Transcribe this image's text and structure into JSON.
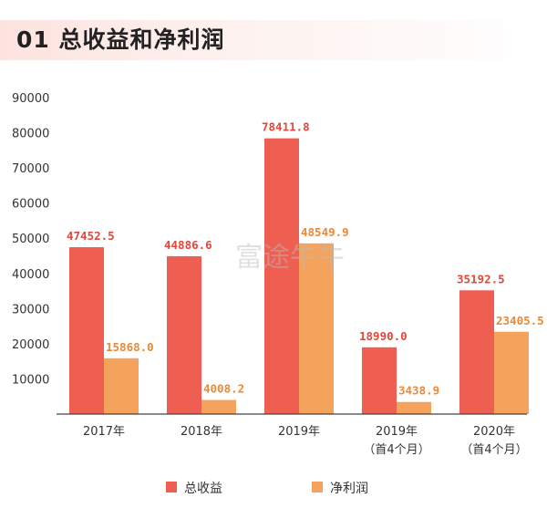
{
  "header": {
    "title": "01 总收益和净利润"
  },
  "watermark": "富途牛牛",
  "colors": {
    "revenue": "#ee5f52",
    "profit": "#f4a25c",
    "revenue_label": "#e0483c",
    "profit_label": "#e88a3a"
  },
  "chart_data": {
    "type": "bar",
    "title": "01 总收益和净利润",
    "categories": [
      {
        "line1": "2017年",
        "line2": ""
      },
      {
        "line1": "2018年",
        "line2": ""
      },
      {
        "line1": "2019年",
        "line2": ""
      },
      {
        "line1": "2019年",
        "line2": "（首4个月）"
      },
      {
        "line1": "2020年",
        "line2": "（首4个月）"
      }
    ],
    "series": [
      {
        "name": "总收益",
        "values": [
          47452.5,
          44886.6,
          78411.8,
          18990.0,
          35192.5
        ],
        "labels": [
          "47452.5",
          "44886.6",
          "78411.8",
          "18990.0",
          "35192.5"
        ]
      },
      {
        "name": "净利润",
        "values": [
          15868.0,
          4008.2,
          48549.9,
          3438.9,
          23405.5
        ],
        "labels": [
          "15868.0",
          "4008.2",
          "48549.9",
          "3438.9",
          "23405.5"
        ]
      }
    ],
    "ylim": [
      0,
      90000
    ],
    "yticks": [
      "90000",
      "80000",
      "70000",
      "60000",
      "50000",
      "40000",
      "30000",
      "20000",
      "10000"
    ],
    "ytick_values": [
      90000,
      80000,
      70000,
      60000,
      50000,
      40000,
      30000,
      20000,
      10000
    ],
    "legend_position": "bottom"
  }
}
